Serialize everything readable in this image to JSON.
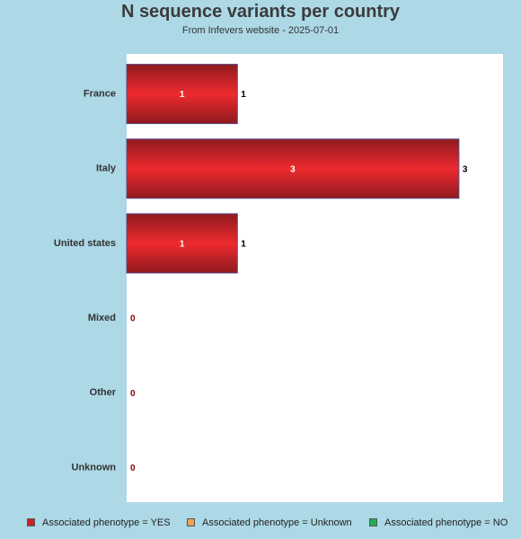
{
  "title": "N sequence variants per country",
  "subtitle": "From Infevers website - 2025-07-01",
  "chart_data": {
    "type": "bar",
    "orientation": "horizontal",
    "categories": [
      "France",
      "Italy",
      "United states",
      "Mixed",
      "Other",
      "Unknown"
    ],
    "series": [
      {
        "name": "Associated phenotype = YES",
        "values": [
          1,
          3,
          1,
          0,
          0,
          0
        ],
        "color": "#cc2229"
      },
      {
        "name": "Associated phenotype = Unknown",
        "values": [
          0,
          0,
          0,
          0,
          0,
          0
        ],
        "color": "#f0a050"
      },
      {
        "name": "Associated phenotype = NO",
        "values": [
          0,
          0,
          0,
          0,
          0,
          0
        ],
        "color": "#20b050"
      }
    ],
    "xlim": [
      0,
      3.4
    ],
    "grid": false,
    "legend_position": "bottom"
  },
  "colors": {
    "background": "#add8e6",
    "plot_background": "#ffffff",
    "bar_dark": "#8e1a1e",
    "bar_light": "#ee2a2f",
    "zero_label": "#8b0000"
  }
}
